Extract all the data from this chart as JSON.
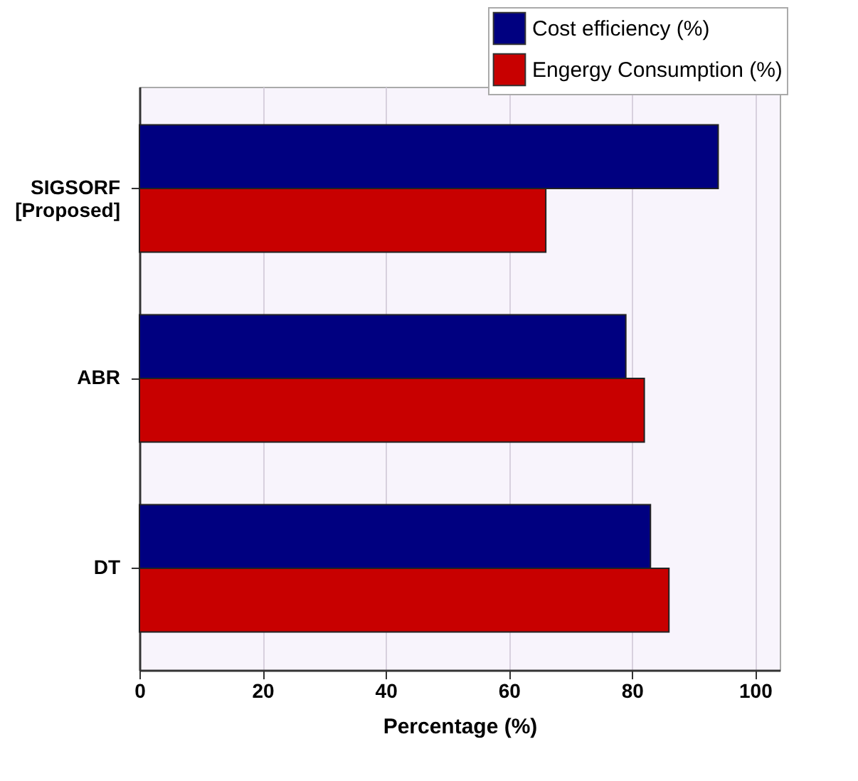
{
  "chart_data": {
    "type": "bar",
    "orientation": "horizontal",
    "xlabel": "Percentage (%)",
    "categories": [
      "SIGSORF [Proposed]",
      "ABR",
      "DT"
    ],
    "series": [
      {
        "name": "Cost efficiency (%)",
        "color": "#000080",
        "values": [
          94,
          79,
          83
        ]
      },
      {
        "name": "Engergy Consumption (%)",
        "color": "#c80000",
        "values": [
          66,
          82,
          86
        ]
      }
    ],
    "xlim": [
      0,
      104
    ],
    "xticks": [
      0,
      20,
      40,
      60,
      80,
      100
    ],
    "grid": true,
    "legend": "top right"
  }
}
